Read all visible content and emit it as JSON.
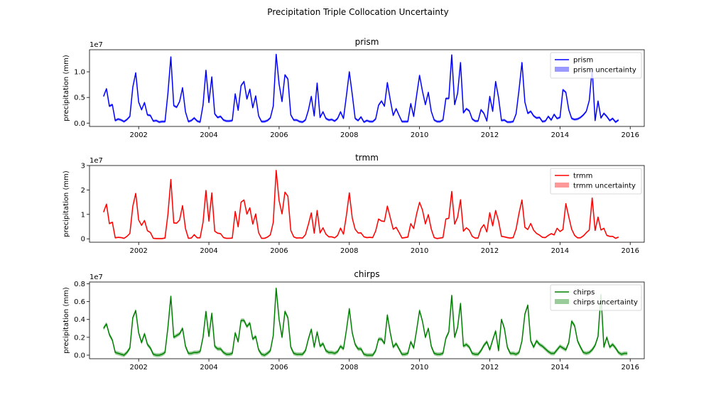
{
  "figure": {
    "title": "Precipitation Triple Collocation Uncertainty"
  },
  "chart_data": [
    {
      "type": "line",
      "title": "prism",
      "ylabel": "precipitation (mm)",
      "scale_label": "1e7",
      "xlim": [
        2000.6,
        2016.4
      ],
      "ylim": [
        -0.65,
        14.3
      ],
      "yticks": [
        0.0,
        0.5,
        1.0
      ],
      "yscale_factor": 10,
      "xticks": [
        2002,
        2004,
        2006,
        2008,
        2010,
        2012,
        2014,
        2016
      ],
      "color": "#0000ff",
      "legend": {
        "placement": "top-right",
        "line": "prism",
        "band": "prism uncertainty"
      },
      "start": 2001.0,
      "step_months": 1,
      "band_half_width": 0.25,
      "values": [
        5.2,
        6.7,
        3.3,
        3.6,
        0.5,
        0.8,
        0.6,
        0.3,
        0.7,
        1.3,
        7.0,
        9.8,
        4.1,
        2.6,
        4.0,
        1.6,
        1.5,
        0.4,
        0.5,
        0.2,
        0.3,
        0.3,
        5.8,
        12.9,
        3.4,
        3.1,
        4.2,
        6.9,
        2.2,
        0.3,
        0.5,
        1.0,
        0.4,
        0.2,
        3.5,
        10.3,
        4.0,
        9.0,
        1.8,
        1.1,
        1.3,
        0.6,
        0.4,
        0.4,
        0.5,
        5.7,
        2.5,
        7.3,
        8.1,
        4.7,
        6.6,
        3.0,
        5.3,
        1.4,
        0.3,
        0.3,
        0.5,
        1.0,
        3.3,
        13.4,
        7.6,
        4.2,
        9.4,
        8.6,
        1.6,
        0.6,
        0.6,
        0.3,
        0.2,
        0.6,
        2.5,
        5.2,
        1.4,
        7.8,
        1.1,
        2.2,
        0.9,
        0.6,
        0.7,
        0.4,
        0.9,
        2.2,
        0.9,
        5.3,
        10.0,
        5.6,
        0.9,
        0.5,
        1.2,
        0.2,
        0.5,
        0.3,
        0.3,
        0.8,
        3.5,
        4.3,
        3.3,
        7.9,
        4.5,
        1.5,
        2.8,
        1.5,
        0.3,
        0.3,
        0.3,
        3.8,
        1.3,
        5.4,
        9.3,
        6.2,
        3.6,
        6.0,
        2.3,
        0.6,
        0.3,
        0.3,
        0.6,
        4.8,
        4.8,
        13.3,
        3.6,
        5.8,
        11.8,
        2.0,
        2.8,
        2.4,
        0.8,
        0.4,
        0.4,
        2.6,
        1.9,
        0.4,
        5.2,
        2.3,
        8.1,
        5.0,
        0.5,
        0.6,
        0.2,
        0.2,
        0.3,
        1.8,
        6.5,
        11.8,
        4.1,
        1.9,
        2.3,
        1.4,
        1.0,
        1.1,
        0.3,
        0.4,
        1.3,
        0.6,
        1.7,
        0.9,
        1.1,
        6.5,
        6.0,
        2.6,
        0.9,
        0.7,
        0.8,
        1.1,
        1.6,
        2.3,
        4.4,
        10.6,
        0.5,
        4.3,
        1.0,
        1.9,
        1.3,
        0.5,
        0.9,
        0.2,
        0.6
      ]
    },
    {
      "type": "line",
      "title": "trmm",
      "ylabel": "precipitation (mm)",
      "scale_label": "1e7",
      "xlim": [
        2000.6,
        2016.4
      ],
      "ylim": [
        -1.4,
        30.0
      ],
      "yticks": [
        0,
        1,
        2,
        3
      ],
      "yscale_factor": 10,
      "xticks": [
        2002,
        2004,
        2006,
        2008,
        2010,
        2012,
        2014,
        2016
      ],
      "color": "#ff0000",
      "legend": {
        "placement": "top-right",
        "line": "trmm",
        "band": "trmm uncertainty"
      },
      "start": 2001.0,
      "step_months": 1,
      "band_half_width": 0.3,
      "values": [
        10.9,
        14.2,
        6.2,
        6.8,
        0.4,
        0.6,
        0.5,
        0.2,
        1.0,
        2.2,
        13.3,
        18.6,
        7.7,
        5.5,
        7.5,
        3.3,
        2.6,
        0.2,
        0.1,
        0.1,
        0.1,
        0.3,
        10.0,
        24.3,
        6.5,
        6.4,
        7.7,
        13.6,
        4.2,
        0.2,
        0.3,
        1.7,
        0.4,
        0.4,
        6.7,
        19.8,
        7.2,
        18.8,
        3.1,
        2.3,
        2.1,
        0.5,
        0.2,
        0.2,
        0.3,
        11.2,
        4.9,
        15.0,
        15.9,
        10.1,
        12.7,
        6.0,
        10.2,
        2.5,
        0.2,
        0.2,
        0.7,
        1.6,
        6.7,
        28.0,
        15.6,
        10.2,
        19.1,
        17.4,
        3.4,
        0.8,
        0.3,
        0.4,
        0.3,
        1.7,
        5.9,
        10.6,
        2.3,
        11.6,
        2.4,
        4.5,
        1.9,
        0.8,
        0.8,
        0.4,
        1.4,
        4.4,
        1.9,
        9.6,
        18.8,
        8.5,
        3.9,
        2.4,
        2.4,
        0.8,
        0.5,
        0.6,
        0.5,
        3.2,
        8.1,
        7.3,
        7.1,
        13.4,
        8.6,
        3.9,
        4.7,
        2.6,
        0.3,
        0.5,
        0.7,
        6.2,
        4.2,
        10.2,
        14.9,
        11.8,
        6.1,
        9.9,
        4.0,
        0.5,
        0.1,
        0.3,
        0.5,
        8.1,
        8.4,
        19.4,
        6.0,
        8.8,
        16.0,
        3.1,
        4.5,
        3.5,
        1.0,
        0.3,
        0.3,
        4.2,
        5.8,
        2.8,
        10.7,
        5.3,
        11.6,
        7.3,
        1.0,
        0.8,
        0.5,
        0.3,
        0.5,
        4.0,
        10.5,
        15.9,
        4.7,
        3.8,
        6.3,
        3.5,
        2.2,
        1.5,
        0.6,
        0.5,
        1.4,
        2.1,
        1.6,
        4.3,
        3.0,
        3.8,
        14.4,
        9.0,
        3.9,
        1.4,
        0.4,
        0.4,
        1.2,
        2.5,
        3.6,
        16.7,
        3.4,
        8.9,
        3.6,
        4.3,
        1.4,
        1.0,
        1.0,
        0.2,
        0.7
      ]
    },
    {
      "type": "line",
      "title": "chirps",
      "ylabel": "precipitation (mm)",
      "scale_label": "1e7",
      "xlim": [
        2000.6,
        2016.4
      ],
      "ylim": [
        -0.4,
        8.2
      ],
      "yticks": [
        0.0,
        0.2,
        0.4,
        0.6,
        0.8
      ],
      "yscale_factor": 10,
      "xticks": [
        2002,
        2004,
        2006,
        2008,
        2010,
        2012,
        2014,
        2016
      ],
      "color": "#008000",
      "legend": {
        "placement": "top-right",
        "line": "chirps",
        "band": "chirps uncertainty"
      },
      "start": 2001.0,
      "step_months": 1,
      "band_half_width": 0.22,
      "values": [
        3.0,
        3.5,
        2.3,
        1.7,
        0.3,
        0.2,
        0.1,
        0.0,
        0.3,
        0.8,
        4.2,
        5.0,
        2.5,
        1.4,
        2.4,
        1.2,
        0.8,
        0.1,
        0.0,
        0.0,
        0.1,
        0.3,
        3.1,
        6.6,
        2.0,
        2.2,
        2.4,
        3.0,
        1.0,
        0.2,
        0.2,
        0.3,
        0.3,
        0.4,
        2.0,
        4.9,
        2.1,
        4.7,
        1.0,
        0.7,
        0.7,
        0.3,
        0.1,
        0.1,
        0.2,
        2.5,
        1.5,
        3.9,
        3.9,
        3.2,
        3.6,
        1.8,
        2.1,
        0.6,
        0.1,
        0.0,
        0.2,
        0.5,
        2.2,
        7.5,
        4.0,
        2.0,
        4.9,
        4.2,
        0.9,
        0.2,
        0.1,
        0.1,
        0.1,
        0.5,
        1.8,
        2.9,
        0.9,
        2.6,
        1.0,
        1.3,
        0.5,
        0.3,
        0.3,
        0.2,
        0.4,
        1.0,
        0.7,
        2.8,
        5.2,
        2.5,
        1.2,
        0.7,
        0.7,
        0.1,
        0.0,
        0.0,
        0.0,
        0.5,
        1.8,
        1.8,
        1.3,
        4.5,
        2.5,
        0.9,
        1.3,
        0.7,
        0.1,
        0.1,
        0.2,
        1.5,
        0.8,
        2.8,
        5.0,
        3.8,
        2.0,
        3.0,
        1.0,
        0.2,
        0.1,
        0.1,
        0.2,
        1.9,
        2.6,
        6.7,
        2.0,
        3.1,
        5.8,
        1.0,
        1.2,
        0.9,
        0.2,
        0.1,
        0.1,
        0.5,
        1.1,
        1.5,
        0.6,
        1.7,
        2.7,
        0.5,
        4.0,
        3.0,
        0.9,
        0.2,
        0.2,
        0.1,
        0.3,
        1.6,
        4.6,
        5.6,
        1.6,
        0.9,
        1.6,
        1.2,
        1.0,
        0.7,
        0.4,
        0.2,
        0.2,
        0.6,
        1.0,
        0.8,
        0.6,
        1.4,
        3.8,
        3.3,
        1.6,
        0.9,
        0.3,
        0.2,
        0.3,
        0.6,
        1.1,
        2.1,
        6.8,
        0.9,
        2.0,
        0.9,
        1.2,
        0.8,
        0.3,
        0.1,
        0.2,
        0.2
      ]
    }
  ]
}
